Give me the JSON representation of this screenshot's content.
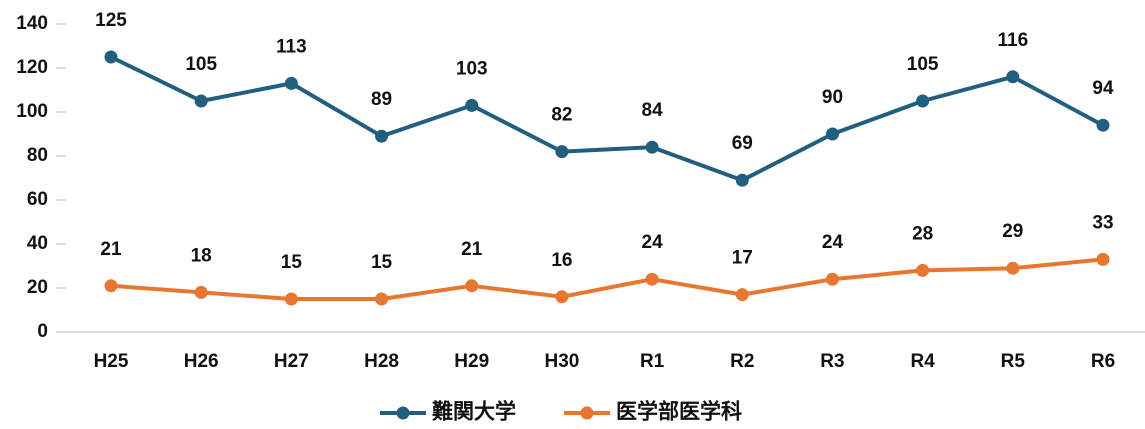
{
  "chart_data": {
    "type": "line",
    "categories": [
      "H25",
      "H26",
      "H27",
      "H28",
      "H29",
      "H30",
      "R1",
      "R2",
      "R3",
      "R4",
      "R5",
      "R6"
    ],
    "series": [
      {
        "name": "難関大学",
        "color": "#215f80",
        "values": [
          125,
          105,
          113,
          89,
          103,
          82,
          84,
          69,
          90,
          105,
          116,
          94
        ]
      },
      {
        "name": "医学部医学科",
        "color": "#e8762f",
        "values": [
          21,
          18,
          15,
          15,
          21,
          16,
          24,
          17,
          24,
          28,
          29,
          33
        ]
      }
    ],
    "ylim": [
      0,
      140
    ],
    "yticks": [
      0,
      20,
      40,
      60,
      80,
      100,
      120,
      140
    ],
    "legend": "bottom"
  }
}
